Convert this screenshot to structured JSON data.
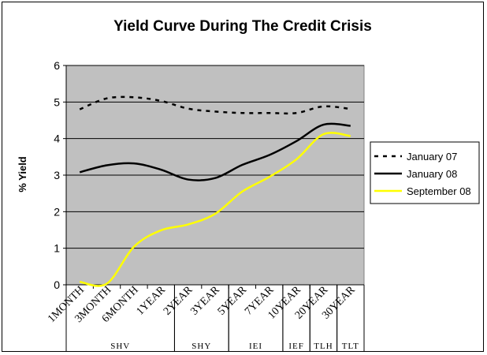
{
  "chart_data": {
    "type": "line",
    "title": "Yield Curve During The Credit Crisis",
    "xlabel": "",
    "ylabel": "% Yield",
    "ylim": [
      0,
      6
    ],
    "yticks": [
      "0",
      "1",
      "2",
      "3",
      "4",
      "5",
      "6"
    ],
    "grid": "horizontal",
    "legend_position": "right",
    "categories": [
      "1MONTH",
      "3MONTH",
      "6MONTH",
      "1YEAR",
      "2YEAR",
      "3YEAR",
      "5YEAR",
      "7YEAR",
      "10YEAR",
      "20YEAR",
      "30YEAR"
    ],
    "x_groups": [
      {
        "label": "SHV",
        "from": 0,
        "to": 3
      },
      {
        "label": "SHY",
        "from": 4,
        "to": 5
      },
      {
        "label": "IEI",
        "from": 6,
        "to": 7
      },
      {
        "label": "IEF",
        "from": 8,
        "to": 8
      },
      {
        "label": "TLH",
        "from": 9,
        "to": 9
      },
      {
        "label": "TLT",
        "from": 10,
        "to": 10
      }
    ],
    "series": [
      {
        "name": "January 07",
        "color": "#000000",
        "style": "dashed",
        "values": [
          4.8,
          5.1,
          5.13,
          5.03,
          4.82,
          4.74,
          4.7,
          4.7,
          4.7,
          4.88,
          4.81
        ]
      },
      {
        "name": "January 08",
        "color": "#000000",
        "style": "solid",
        "values": [
          3.08,
          3.27,
          3.32,
          3.15,
          2.88,
          2.92,
          3.28,
          3.55,
          3.93,
          4.38,
          4.35
        ]
      },
      {
        "name": "September 08",
        "color": "#ffff00",
        "style": "solid",
        "values": [
          0.08,
          0.03,
          1.04,
          1.49,
          1.65,
          1.94,
          2.55,
          2.95,
          3.43,
          4.12,
          4.07
        ]
      }
    ]
  }
}
